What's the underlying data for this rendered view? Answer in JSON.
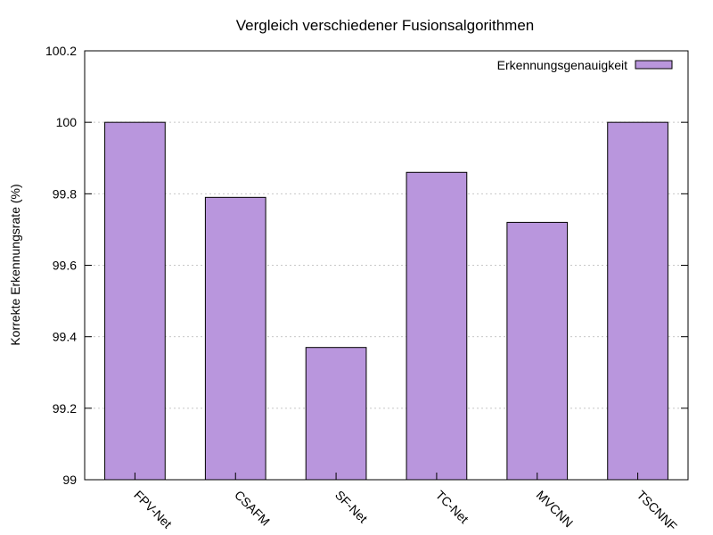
{
  "chart_data": {
    "type": "bar",
    "title": "Vergleich verschiedener Fusionsalgorithmen",
    "xlabel": "",
    "ylabel": "Korrekte Erkennungsrate (%)",
    "categories": [
      "FPV-Net",
      "CSAFM",
      "SF-Net",
      "TC-Net",
      "MVCNN",
      "TSCNNF"
    ],
    "series": [
      {
        "name": "Erkennungsgenauigkeit",
        "values": [
          100.0,
          99.79,
          99.37,
          99.86,
          99.72,
          100.0
        ]
      }
    ],
    "ylim": [
      99,
      100.2
    ],
    "yticks": [
      "99",
      "99.2",
      "99.4",
      "99.6",
      "99.8",
      "100",
      "100.2"
    ],
    "grid": true,
    "legend_position": "top-right",
    "bar_color": "#b996dd",
    "bar_edge_color": "#000000"
  }
}
